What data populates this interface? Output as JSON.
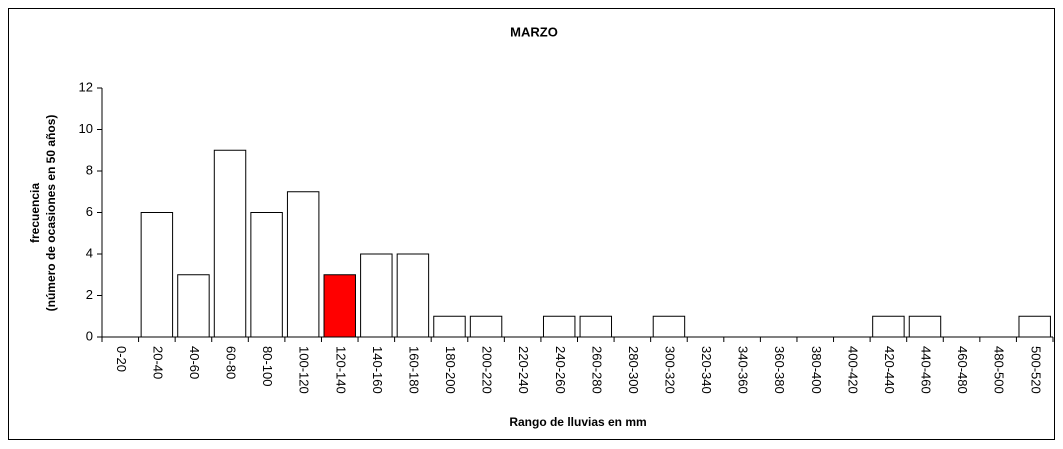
{
  "chart_data": {
    "type": "bar",
    "title": "MARZO",
    "xlabel": "Rango de lluvias en mm",
    "ylabel": [
      "frecuencia",
      "(número de ocasiones en 50 años)"
    ],
    "categories": [
      "0-20",
      "20-40",
      "40-60",
      "60-80",
      "80-100",
      "100-120",
      "120-140",
      "140-160",
      "160-180",
      "180-200",
      "200-220",
      "220-240",
      "240-260",
      "260-280",
      "280-300",
      "300-320",
      "320-340",
      "340-360",
      "360-380",
      "380-400",
      "400-420",
      "420-440",
      "440-460",
      "460-480",
      "480-500",
      "500-520"
    ],
    "values": [
      0,
      6,
      3,
      9,
      6,
      7,
      3,
      4,
      4,
      1,
      1,
      0,
      1,
      1,
      0,
      1,
      0,
      0,
      0,
      0,
      0,
      1,
      1,
      0,
      0,
      1
    ],
    "colors": [
      "#ffffff",
      "#ffffff",
      "#ffffff",
      "#ffffff",
      "#ffffff",
      "#ffffff",
      "#ff0000",
      "#ffffff",
      "#ffffff",
      "#ffffff",
      "#ffffff",
      "#ffffff",
      "#ffffff",
      "#ffffff",
      "#ffffff",
      "#ffffff",
      "#ffffff",
      "#ffffff",
      "#ffffff",
      "#ffffff",
      "#ffffff",
      "#ffffff",
      "#ffffff",
      "#ffffff",
      "#ffffff",
      "#ffffff"
    ],
    "ylim": [
      0,
      12
    ],
    "yticks": [
      0,
      2,
      4,
      6,
      8,
      10,
      12
    ],
    "grid": false
  }
}
